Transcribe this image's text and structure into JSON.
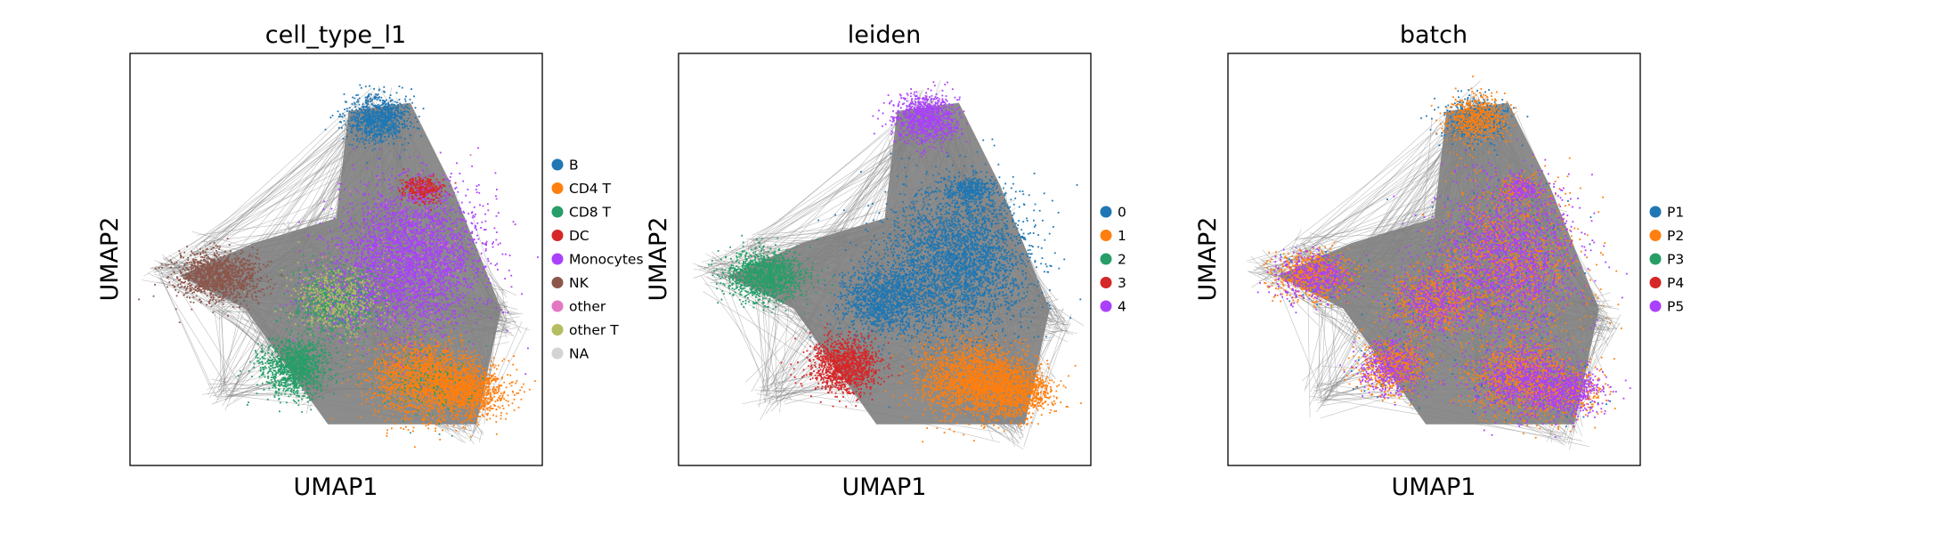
{
  "chart_data": [
    {
      "type": "scatter",
      "title": "cell_type_l1",
      "xlabel": "UMAP1",
      "ylabel": "UMAP2",
      "legend_position": "right",
      "grid": false,
      "series": [
        {
          "name": "B",
          "color": "#1f77b4"
        },
        {
          "name": "CD4 T",
          "color": "#ff7f0e"
        },
        {
          "name": "CD8 T",
          "color": "#279e68"
        },
        {
          "name": "DC",
          "color": "#d62728"
        },
        {
          "name": "Monocytes",
          "color": "#aa40fc"
        },
        {
          "name": "NK",
          "color": "#8c564b"
        },
        {
          "name": "other",
          "color": "#e377c2"
        },
        {
          "name": "other T",
          "color": "#b5bd61"
        },
        {
          "name": "NA",
          "color": "#d3d3d3"
        }
      ]
    },
    {
      "type": "scatter",
      "title": "leiden",
      "xlabel": "UMAP1",
      "ylabel": "UMAP2",
      "legend_position": "right",
      "grid": false,
      "series": [
        {
          "name": "0",
          "color": "#1f77b4"
        },
        {
          "name": "1",
          "color": "#ff7f0e"
        },
        {
          "name": "2",
          "color": "#279e68"
        },
        {
          "name": "3",
          "color": "#d62728"
        },
        {
          "name": "4",
          "color": "#aa40fc"
        }
      ]
    },
    {
      "type": "scatter",
      "title": "batch",
      "xlabel": "UMAP1",
      "ylabel": "UMAP2",
      "legend_position": "right",
      "grid": false,
      "series": [
        {
          "name": "P1",
          "color": "#1f77b4"
        },
        {
          "name": "P2",
          "color": "#ff7f0e"
        },
        {
          "name": "P3",
          "color": "#279e68"
        },
        {
          "name": "P4",
          "color": "#d62728"
        },
        {
          "name": "P5",
          "color": "#aa40fc"
        }
      ]
    }
  ],
  "edge_color": "#808080"
}
